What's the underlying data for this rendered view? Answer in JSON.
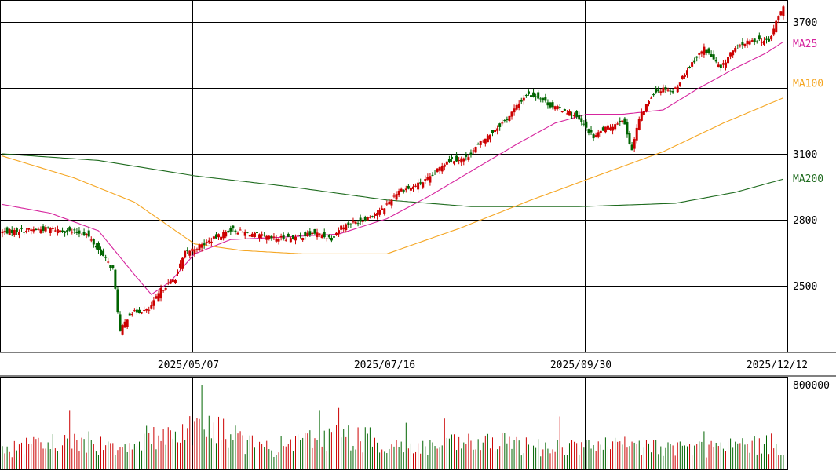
{
  "chart_data": {
    "type": "candlestick",
    "price_axis": {
      "ticks": [
        {
          "value": 3700,
          "label": "3700"
        },
        {
          "value": 3100,
          "label": "3100"
        },
        {
          "value": 2800,
          "label": "2800"
        },
        {
          "value": 2500,
          "label": "2500"
        }
      ],
      "gridlines": [
        3700,
        3400,
        3100,
        2800,
        2500
      ],
      "ylim": [
        2200,
        3800
      ]
    },
    "date_axis": {
      "labels": [
        "2025/05/07",
        "2025/07/16",
        "2025/09/30",
        "2025/12/12"
      ]
    },
    "moving_averages": [
      {
        "name": "MA25",
        "label": "MA25",
        "color": "#d6259e"
      },
      {
        "name": "MA100",
        "label": "MA100",
        "color": "#f5a623"
      },
      {
        "name": "MA200",
        "label": "MA200",
        "color": "#1e6b1e"
      }
    ],
    "colors": {
      "up": "#cc0000",
      "down": "#006400"
    },
    "volume_axis": {
      "ticks": [
        {
          "value": 800000,
          "label": "800000"
        }
      ],
      "ylim": [
        0,
        800000
      ]
    },
    "note_range": "approximate daily series read from the figure",
    "price_anchor_points": [
      {
        "x": 0,
        "y": 2745
      },
      {
        "x": 20,
        "y": 2760
      },
      {
        "x": 35,
        "y": 2735
      },
      {
        "x": 46,
        "y": 2575
      },
      {
        "x": 49,
        "y": 2290
      },
      {
        "x": 53,
        "y": 2375
      },
      {
        "x": 58,
        "y": 2385
      },
      {
        "x": 61,
        "y": 2390
      },
      {
        "x": 66,
        "y": 2480
      },
      {
        "x": 72,
        "y": 2535
      },
      {
        "x": 76,
        "y": 2650
      },
      {
        "x": 83,
        "y": 2685
      },
      {
        "x": 95,
        "y": 2755
      },
      {
        "x": 104,
        "y": 2735
      },
      {
        "x": 112,
        "y": 2715
      },
      {
        "x": 122,
        "y": 2720
      },
      {
        "x": 130,
        "y": 2740
      },
      {
        "x": 137,
        "y": 2715
      },
      {
        "x": 141,
        "y": 2770
      },
      {
        "x": 149,
        "y": 2795
      },
      {
        "x": 158,
        "y": 2845
      },
      {
        "x": 165,
        "y": 2935
      },
      {
        "x": 170,
        "y": 2945
      },
      {
        "x": 178,
        "y": 2990
      },
      {
        "x": 185,
        "y": 3070
      },
      {
        "x": 193,
        "y": 3080
      },
      {
        "x": 198,
        "y": 3140
      },
      {
        "x": 210,
        "y": 3260
      },
      {
        "x": 218,
        "y": 3370
      },
      {
        "x": 223,
        "y": 3360
      },
      {
        "x": 228,
        "y": 3320
      },
      {
        "x": 237,
        "y": 3285
      },
      {
        "x": 242,
        "y": 3230
      },
      {
        "x": 246,
        "y": 3175
      },
      {
        "x": 250,
        "y": 3210
      },
      {
        "x": 255,
        "y": 3235
      },
      {
        "x": 258,
        "y": 3260
      },
      {
        "x": 262,
        "y": 3120
      },
      {
        "x": 265,
        "y": 3260
      },
      {
        "x": 271,
        "y": 3380
      },
      {
        "x": 276,
        "y": 3400
      },
      {
        "x": 279,
        "y": 3380
      },
      {
        "x": 286,
        "y": 3500
      },
      {
        "x": 292,
        "y": 3580
      },
      {
        "x": 296,
        "y": 3530
      },
      {
        "x": 299,
        "y": 3485
      },
      {
        "x": 303,
        "y": 3560
      },
      {
        "x": 308,
        "y": 3600
      },
      {
        "x": 314,
        "y": 3620
      },
      {
        "x": 319,
        "y": 3610
      },
      {
        "x": 322,
        "y": 3700
      },
      {
        "x": 325,
        "y": 3770
      }
    ],
    "ma25_anchor_points": [
      {
        "x": 0,
        "y": 2870
      },
      {
        "x": 20,
        "y": 2830
      },
      {
        "x": 40,
        "y": 2750
      },
      {
        "x": 55,
        "y": 2550
      },
      {
        "x": 62,
        "y": 2460
      },
      {
        "x": 70,
        "y": 2520
      },
      {
        "x": 80,
        "y": 2645
      },
      {
        "x": 95,
        "y": 2710
      },
      {
        "x": 115,
        "y": 2720
      },
      {
        "x": 140,
        "y": 2735
      },
      {
        "x": 160,
        "y": 2805
      },
      {
        "x": 178,
        "y": 2910
      },
      {
        "x": 198,
        "y": 3040
      },
      {
        "x": 215,
        "y": 3150
      },
      {
        "x": 230,
        "y": 3240
      },
      {
        "x": 243,
        "y": 3280
      },
      {
        "x": 258,
        "y": 3280
      },
      {
        "x": 275,
        "y": 3300
      },
      {
        "x": 290,
        "y": 3400
      },
      {
        "x": 305,
        "y": 3490
      },
      {
        "x": 318,
        "y": 3560
      },
      {
        "x": 325,
        "y": 3610
      }
    ],
    "ma100_anchor_points": [
      {
        "x": 0,
        "y": 3090
      },
      {
        "x": 30,
        "y": 2990
      },
      {
        "x": 55,
        "y": 2880
      },
      {
        "x": 80,
        "y": 2690
      },
      {
        "x": 100,
        "y": 2660
      },
      {
        "x": 125,
        "y": 2645
      },
      {
        "x": 160,
        "y": 2645
      },
      {
        "x": 190,
        "y": 2760
      },
      {
        "x": 220,
        "y": 2890
      },
      {
        "x": 250,
        "y": 3010
      },
      {
        "x": 275,
        "y": 3110
      },
      {
        "x": 300,
        "y": 3240
      },
      {
        "x": 325,
        "y": 3355
      }
    ],
    "ma200_anchor_points": [
      {
        "x": 0,
        "y": 3100
      },
      {
        "x": 40,
        "y": 3070
      },
      {
        "x": 80,
        "y": 3000
      },
      {
        "x": 120,
        "y": 2950
      },
      {
        "x": 160,
        "y": 2890
      },
      {
        "x": 195,
        "y": 2860
      },
      {
        "x": 240,
        "y": 2860
      },
      {
        "x": 280,
        "y": 2875
      },
      {
        "x": 305,
        "y": 2925
      },
      {
        "x": 325,
        "y": 2985
      }
    ],
    "volume_envelope": [
      {
        "x": 0,
        "v": 180000
      },
      {
        "x": 28,
        "v": 260000
      },
      {
        "x": 50,
        "v": 230000
      },
      {
        "x": 83,
        "v": 420000
      },
      {
        "x": 110,
        "v": 190000
      },
      {
        "x": 140,
        "v": 330000
      },
      {
        "x": 170,
        "v": 200000
      },
      {
        "x": 200,
        "v": 250000
      },
      {
        "x": 230,
        "v": 210000
      },
      {
        "x": 260,
        "v": 220000
      },
      {
        "x": 290,
        "v": 200000
      },
      {
        "x": 325,
        "v": 240000
      }
    ],
    "volume_spikes": [
      {
        "x": 83,
        "v": 800000
      },
      {
        "x": 28,
        "v": 560000
      },
      {
        "x": 132,
        "v": 560000
      },
      {
        "x": 140,
        "v": 580000
      },
      {
        "x": 232,
        "v": 500000
      },
      {
        "x": 168,
        "v": 440000
      },
      {
        "x": 184,
        "v": 480000
      },
      {
        "x": 292,
        "v": 360000
      }
    ]
  }
}
